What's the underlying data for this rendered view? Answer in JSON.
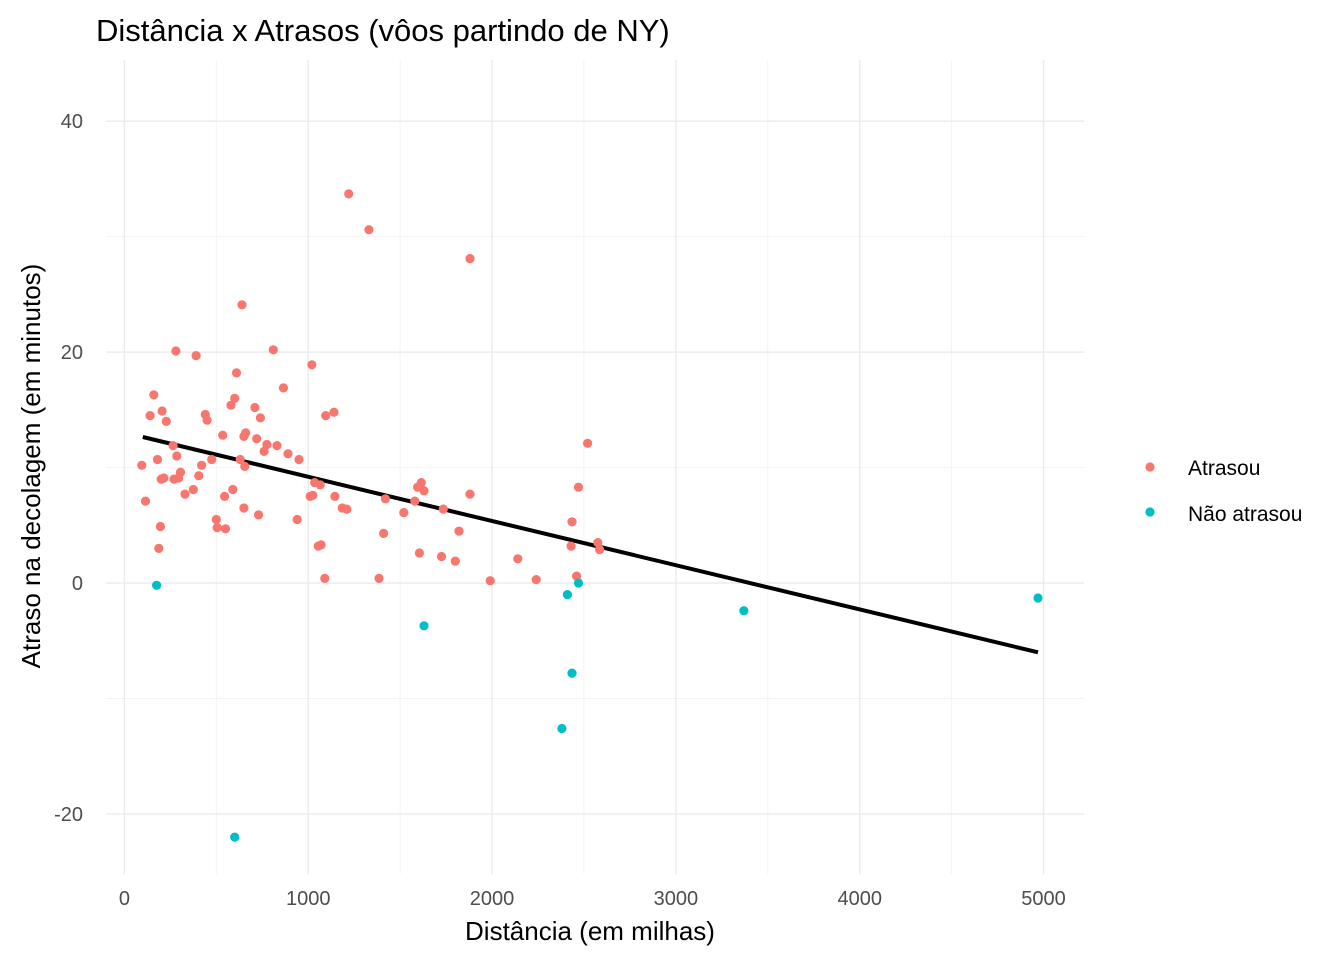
{
  "chart_data": {
    "type": "scatter",
    "title": "Distância x Atrasos (vôos partindo de NY)",
    "xlabel": "Distância (em milhas)",
    "ylabel": "Atraso na decolagem (em minutos)",
    "xlim": [
      -100,
      5220
    ],
    "ylim": [
      -25.2,
      45.3
    ],
    "x_ticks": [
      0,
      1000,
      2000,
      3000,
      4000,
      5000
    ],
    "y_ticks": [
      -20,
      0,
      20,
      40
    ],
    "x_tick_labels": [
      "0",
      "1000",
      "2000",
      "3000",
      "4000",
      "5000"
    ],
    "y_tick_labels": [
      "-20",
      "0",
      "20",
      "40"
    ],
    "grid": true,
    "legend_position": "right",
    "series": [
      {
        "name": "Atrasou",
        "color": "#F8766D",
        "points": [
          [
            95,
            10.2
          ],
          [
            115,
            7.1
          ],
          [
            140,
            14.5
          ],
          [
            160,
            16.3
          ],
          [
            180,
            10.7
          ],
          [
            187,
            3.0
          ],
          [
            196,
            4.9
          ],
          [
            200,
            9.0
          ],
          [
            205,
            14.9
          ],
          [
            215,
            9.1
          ],
          [
            228,
            14.0
          ],
          [
            265,
            11.9
          ],
          [
            270,
            9.0
          ],
          [
            280,
            20.1
          ],
          [
            285,
            11.0
          ],
          [
            295,
            9.1
          ],
          [
            305,
            9.6
          ],
          [
            330,
            7.7
          ],
          [
            375,
            8.1
          ],
          [
            390,
            19.7
          ],
          [
            405,
            9.3
          ],
          [
            420,
            10.2
          ],
          [
            440,
            14.6
          ],
          [
            450,
            14.1
          ],
          [
            475,
            10.7
          ],
          [
            500,
            5.5
          ],
          [
            505,
            4.8
          ],
          [
            535,
            12.8
          ],
          [
            550,
            4.7
          ],
          [
            545,
            7.5
          ],
          [
            580,
            15.4
          ],
          [
            590,
            8.1
          ],
          [
            600,
            16.0
          ],
          [
            610,
            18.2
          ],
          [
            630,
            10.7
          ],
          [
            640,
            24.1
          ],
          [
            650,
            12.7
          ],
          [
            655,
            10.1
          ],
          [
            650,
            6.5
          ],
          [
            660,
            13.0
          ],
          [
            710,
            15.2
          ],
          [
            720,
            12.5
          ],
          [
            730,
            5.9
          ],
          [
            740,
            14.3
          ],
          [
            760,
            11.4
          ],
          [
            775,
            12.0
          ],
          [
            810,
            20.2
          ],
          [
            830,
            11.9
          ],
          [
            865,
            16.9
          ],
          [
            890,
            11.2
          ],
          [
            940,
            5.5
          ],
          [
            950,
            10.7
          ],
          [
            1010,
            7.5
          ],
          [
            1020,
            18.9
          ],
          [
            1025,
            7.6
          ],
          [
            1035,
            8.7
          ],
          [
            1055,
            3.2
          ],
          [
            1065,
            8.5
          ],
          [
            1070,
            3.3
          ],
          [
            1090,
            0.4
          ],
          [
            1095,
            14.5
          ],
          [
            1140,
            14.8
          ],
          [
            1145,
            7.5
          ],
          [
            1185,
            6.5
          ],
          [
            1210,
            6.4
          ],
          [
            1220,
            33.7
          ],
          [
            1330,
            30.6
          ],
          [
            1385,
            0.4
          ],
          [
            1410,
            4.3
          ],
          [
            1420,
            7.3
          ],
          [
            1520,
            6.1
          ],
          [
            1580,
            7.1
          ],
          [
            1595,
            8.3
          ],
          [
            1605,
            2.6
          ],
          [
            1615,
            8.7
          ],
          [
            1630,
            8.0
          ],
          [
            1725,
            2.3
          ],
          [
            1735,
            6.4
          ],
          [
            1800,
            1.9
          ],
          [
            1820,
            4.5
          ],
          [
            1880,
            28.1
          ],
          [
            1880,
            7.7
          ],
          [
            1990,
            0.2
          ],
          [
            2140,
            2.1
          ],
          [
            2240,
            0.3
          ],
          [
            2430,
            3.2
          ],
          [
            2435,
            5.3
          ],
          [
            2460,
            0.6
          ],
          [
            2470,
            8.3
          ],
          [
            2520,
            12.1
          ],
          [
            2575,
            3.5
          ],
          [
            2585,
            2.9
          ]
        ]
      },
      {
        "name": "Não atrasou",
        "color": "#00BFC4",
        "points": [
          [
            175,
            -0.2
          ],
          [
            600,
            -22.0
          ],
          [
            1630,
            -3.7
          ],
          [
            2380,
            -12.6
          ],
          [
            2410,
            -1.0
          ],
          [
            2435,
            -7.8
          ],
          [
            2470,
            0.0
          ],
          [
            3370,
            -2.4
          ],
          [
            4970,
            -1.3
          ]
        ]
      }
    ],
    "trend_line": {
      "color": "#000000",
      "x": [
        100,
        4970
      ],
      "y": [
        12.65,
        -6.0
      ]
    }
  }
}
